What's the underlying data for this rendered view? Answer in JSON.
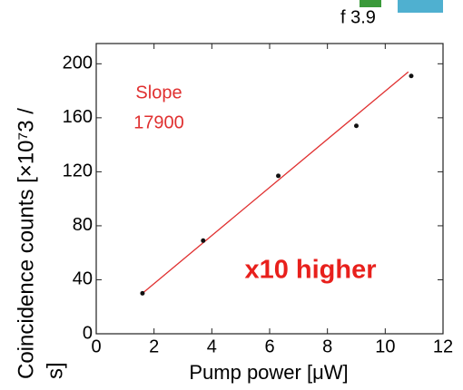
{
  "chart_data": {
    "type": "scatter",
    "x": [
      1.6,
      3.7,
      6.3,
      9.0,
      10.9
    ],
    "values": [
      30,
      69,
      117,
      154,
      191
    ],
    "color": "#111111",
    "fit": {
      "x": [
        1.6,
        10.8
      ],
      "y": [
        30,
        194
      ],
      "color": "#e03030"
    },
    "xlabel": "Pump power [μW]",
    "ylabel": [
      "Coincidence counts [×10⁷3 /",
      "s]"
    ],
    "xlim": [
      0,
      12
    ],
    "ylim": [
      0,
      215
    ],
    "xticks": [
      0,
      2,
      4,
      6,
      8,
      10,
      12
    ],
    "yticks": [
      0,
      40,
      80,
      120,
      160,
      200
    ],
    "annotations": [
      "Slope",
      "17900",
      "x10 higher",
      "f 3.9"
    ]
  }
}
